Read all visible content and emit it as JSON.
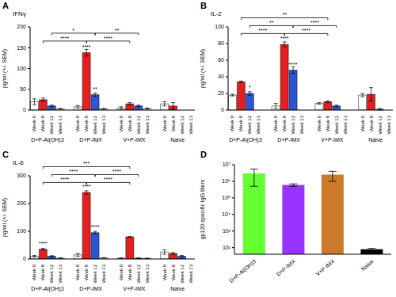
{
  "chart_data": [
    {
      "panel": "A",
      "type": "bar",
      "title": "IFNγ",
      "ylabel": "pg/ml (+/- SEM)",
      "categories": [
        "D+P-Al(OH)3",
        "D+P-IMX",
        "V+P-IMX",
        "Naive"
      ],
      "series": [
        {
          "name": "Week 0",
          "color": "#ffffff",
          "values": [
            20,
            8,
            5,
            15
          ],
          "errors": [
            7,
            3,
            3,
            5
          ],
          "significance": [
            null,
            null,
            null,
            null
          ]
        },
        {
          "name": "Week 8",
          "color": "#e41f1f",
          "values": [
            25,
            138,
            15,
            10
          ],
          "errors": [
            4,
            8,
            3,
            8
          ],
          "significance": [
            null,
            "****",
            null,
            null
          ]
        },
        {
          "name": "Week 12",
          "color": "#2d55d6",
          "values": [
            10,
            37,
            10,
            null
          ],
          "errors": [
            2,
            4,
            2,
            null
          ],
          "significance": [
            null,
            "**",
            null,
            null
          ]
        },
        {
          "name": "Week 13",
          "color": "#ffffff",
          "values": [
            3,
            3,
            4,
            null
          ],
          "errors": [
            1,
            1,
            1,
            null
          ],
          "significance": [
            null,
            null,
            null,
            null
          ]
        }
      ],
      "comparisons": [
        {
          "from": [
            "D+P-Al(OH)3",
            "Week 8"
          ],
          "to": [
            "D+P-IMX",
            "Week 8"
          ],
          "label": "****"
        },
        {
          "from": [
            "D+P-IMX",
            "Week 8"
          ],
          "to": [
            "V+P-IMX",
            "Week 8"
          ],
          "label": "****"
        },
        {
          "from": [
            "D+P-Al(OH)3",
            "Week 12"
          ],
          "to": [
            "D+P-IMX",
            "Week 12"
          ],
          "label": "*"
        },
        {
          "from": [
            "D+P-IMX",
            "Week 12"
          ],
          "to": [
            "V+P-IMX",
            "Week 12"
          ],
          "label": "**"
        }
      ],
      "ylim": [
        0,
        200
      ],
      "yticks": [
        0,
        50,
        100,
        150,
        200
      ]
    },
    {
      "panel": "B",
      "type": "bar",
      "title": "IL-2",
      "ylabel": "pg/ml (+/- SEM)",
      "categories": [
        "D+P-Al(OH)3",
        "D+P-IMX",
        "V+P-IMX",
        "Naive"
      ],
      "series": [
        {
          "name": "Week 0",
          "color": "#ffffff",
          "values": [
            18,
            5,
            8,
            18
          ],
          "errors": [
            1,
            3,
            1,
            2
          ],
          "significance": [
            null,
            null,
            null,
            null
          ]
        },
        {
          "name": "Week 8",
          "color": "#e41f1f",
          "values": [
            34,
            79,
            10,
            19
          ],
          "errors": [
            1,
            3,
            1,
            8
          ],
          "significance": [
            null,
            "****",
            null,
            null
          ]
        },
        {
          "name": "Week 12",
          "color": "#2d55d6",
          "values": [
            20,
            48,
            5,
            1
          ],
          "errors": [
            2,
            4,
            1,
            1
          ],
          "significance": [
            "*",
            "****",
            null,
            null
          ]
        },
        {
          "name": "Week 13",
          "color": "#ffffff",
          "values": [
            null,
            null,
            null,
            null
          ],
          "errors": [
            null,
            null,
            null,
            null
          ],
          "significance": [
            null,
            null,
            null,
            null
          ]
        }
      ],
      "comparisons": [
        {
          "from": [
            "D+P-Al(OH)3",
            "Week 8"
          ],
          "to": [
            "D+P-IMX",
            "Week 8"
          ],
          "label": "****"
        },
        {
          "from": [
            "D+P-IMX",
            "Week 8"
          ],
          "to": [
            "V+P-IMX",
            "Week 8"
          ],
          "label": "****"
        },
        {
          "from": [
            "D+P-Al(OH)3",
            "Week 12"
          ],
          "to": [
            "D+P-IMX",
            "Week 12"
          ],
          "label": "**"
        },
        {
          "from": [
            "D+P-IMX",
            "Week 12"
          ],
          "to": [
            "V+P-IMX",
            "Week 12"
          ],
          "label": "****"
        },
        {
          "from": [
            "D+P-Al(OH)3",
            "Week 8"
          ],
          "to": [
            "V+P-IMX",
            "Week 8"
          ],
          "label": "**"
        }
      ],
      "ylim": [
        0,
        100
      ],
      "yticks": [
        0,
        20,
        40,
        60,
        80,
        100
      ]
    },
    {
      "panel": "C",
      "type": "bar",
      "title": "IL-6",
      "ylabel": "pg/ml (+/- SEM)",
      "categories": [
        "D+P-Al(OH)3",
        "D+P-IMX",
        "V+P-IMX",
        "Naive"
      ],
      "series": [
        {
          "name": "Week 0",
          "color": "#ffffff",
          "values": [
            10,
            15,
            3,
            25
          ],
          "errors": [
            3,
            5,
            1,
            8
          ],
          "significance": [
            null,
            null,
            null,
            null
          ]
        },
        {
          "name": "Week 8",
          "color": "#e41f1f",
          "values": [
            35,
            240,
            80,
            20
          ],
          "errors": [
            3,
            6,
            1,
            3
          ],
          "significance": [
            "****",
            "****",
            null,
            null
          ]
        },
        {
          "name": "Week 12",
          "color": "#2d55d6",
          "values": [
            10,
            95,
            3,
            10
          ],
          "errors": [
            2,
            5,
            1,
            3
          ],
          "significance": [
            null,
            "****",
            null,
            null
          ]
        },
        {
          "name": "Week 13",
          "color": "#ffffff",
          "values": [
            3,
            4,
            2,
            null
          ],
          "errors": [
            1,
            1,
            1,
            null
          ],
          "significance": [
            null,
            null,
            null,
            null
          ]
        }
      ],
      "comparisons": [
        {
          "from": [
            "D+P-Al(OH)3",
            "Week 8"
          ],
          "to": [
            "D+P-IMX",
            "Week 8"
          ],
          "label": "****"
        },
        {
          "from": [
            "D+P-IMX",
            "Week 8"
          ],
          "to": [
            "V+P-IMX",
            "Week 8"
          ],
          "label": "****"
        },
        {
          "from": [
            "D+P-Al(OH)3",
            "Week 12"
          ],
          "to": [
            "D+P-IMX",
            "Week 12"
          ],
          "label": "****"
        },
        {
          "from": [
            "D+P-IMX",
            "Week 12"
          ],
          "to": [
            "V+P-IMX",
            "Week 12"
          ],
          "label": "****"
        },
        {
          "from": [
            "D+P-Al(OH)3",
            "Week 8"
          ],
          "to": [
            "V+P-IMX",
            "Week 8"
          ],
          "label": "***"
        }
      ],
      "ylim": [
        0,
        300
      ],
      "yticks": [
        0,
        100,
        200,
        300
      ]
    },
    {
      "panel": "D",
      "type": "bar",
      "ylabel": "gp120-specific IgG titers",
      "log": "y",
      "categories": [
        "D+P-Al(OH)3",
        "D+P-IMX",
        "V+P-IMX",
        "Naive"
      ],
      "values": [
        3000000,
        600000,
        2500000,
        80
      ],
      "errors": [
        2500000,
        100000,
        1500000,
        10
      ],
      "colors": [
        "#66ff33",
        "#9933ff",
        "#cc7a29",
        "#000000"
      ],
      "ylim": [
        40,
        10000000
      ],
      "yticks": [
        {
          "value": 100,
          "label": "10²"
        },
        {
          "value": 1000,
          "label": "10³"
        },
        {
          "value": 10000,
          "label": "10⁴"
        },
        {
          "value": 100000,
          "label": "10⁵"
        },
        {
          "value": 1000000,
          "label": "10⁶"
        },
        {
          "value": 10000000,
          "label": "10⁷"
        }
      ]
    }
  ]
}
